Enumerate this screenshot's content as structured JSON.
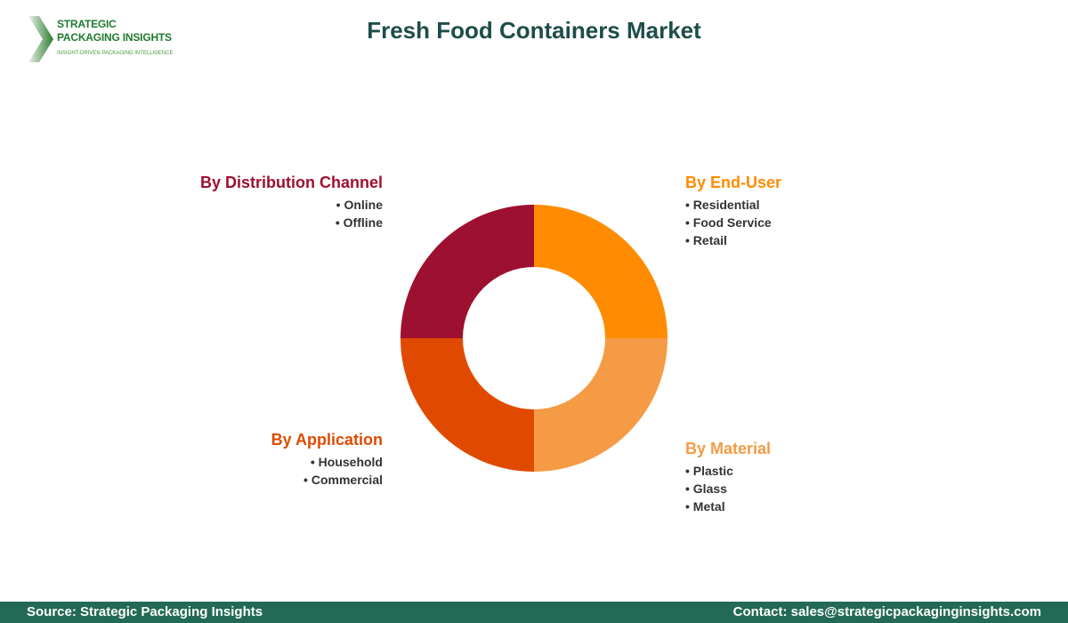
{
  "logo": {
    "line1": "STRATEGIC",
    "line2": "PACKAGING INSIGHTS",
    "tagline": "INSIGHT-DRIVEN PACKAGING INTELLIGENCE"
  },
  "chart_data": {
    "type": "pie",
    "donut": true,
    "title": "Fresh Food Containers Market",
    "categories": [
      "By End-User",
      "By Material",
      "By Application",
      "By Distribution Channel"
    ],
    "values": [
      25,
      25,
      25,
      25
    ],
    "colors": [
      "#FF8C00",
      "#F59B45",
      "#E04A00",
      "#9E1030"
    ],
    "segments": [
      {
        "label": "By End-User",
        "items": [
          "Residential",
          "Food Service",
          "Retail"
        ]
      },
      {
        "label": "By Material",
        "items": [
          "Plastic",
          "Glass",
          "Metal"
        ]
      },
      {
        "label": "By Application",
        "items": [
          "Household",
          "Commercial"
        ]
      },
      {
        "label": "By Distribution Channel",
        "items": [
          "Online",
          "Offline"
        ]
      }
    ]
  },
  "footer": {
    "source": "Source: Strategic Packaging Insights",
    "contact": "Contact: sales@strategicpackaginginsights.com"
  }
}
